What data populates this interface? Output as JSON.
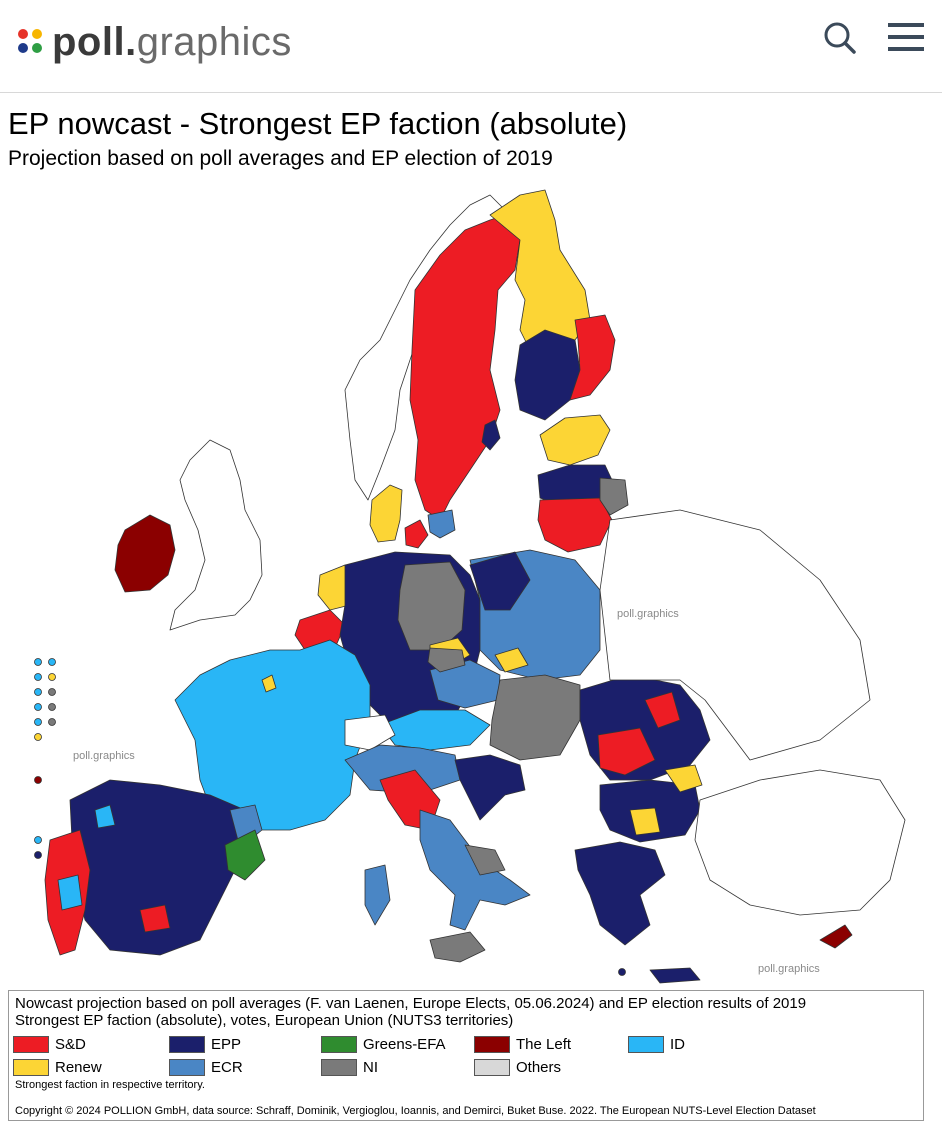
{
  "header": {
    "logo_text_bold": "poll.",
    "logo_text_light": "graphics",
    "logo_dot_colors": [
      "#e63329",
      "#f7b500",
      "#1e3a8a",
      "#2e9e44"
    ]
  },
  "page": {
    "title": "EP nowcast - Strongest EP faction (absolute)",
    "subtitle": "Projection based on poll averages and EP election of 2019"
  },
  "map": {
    "watermarks": [
      "poll.graphics",
      "poll.graphics",
      "poll.graphics"
    ],
    "background_outline_color": "#444444",
    "country_fills": {
      "ireland": "The Left",
      "sweden": "S&D",
      "finland": "Renew",
      "denmark": "Renew",
      "france": "ID",
      "spain": "EPP",
      "portugal": "S&D",
      "germany": "EPP",
      "poland": "ECR",
      "italy": "ECR",
      "romania": "EPP",
      "bulgaria": "EPP",
      "greece": "EPP",
      "hungary": "NI",
      "cyprus": "The Left"
    }
  },
  "legend": {
    "title": "Nowcast projection based on poll averages (F. van Laenen, Europe Elects, 05.06.2024) and EP election results of 2019",
    "subtitle": "Strongest EP faction (absolute), votes, European Union (NUTS3 territories)",
    "items": [
      {
        "label": "S&D",
        "color": "#ed1c24"
      },
      {
        "label": "EPP",
        "color": "#1b1f6b"
      },
      {
        "label": "Greens-EFA",
        "color": "#2f8c2f"
      },
      {
        "label": "The Left",
        "color": "#8b0000"
      },
      {
        "label": "ID",
        "color": "#29b6f6"
      },
      {
        "label": "Renew",
        "color": "#fcd535"
      },
      {
        "label": "ECR",
        "color": "#4a86c5"
      },
      {
        "label": "NI",
        "color": "#7a7a7a"
      },
      {
        "label": "Others",
        "color": "#d8d8d8"
      }
    ],
    "note": "Strongest faction in respective territory.",
    "copyright": "Copyright © 2024 POLLION GmbH, data source: Schraff, Dominik, Vergioglou, Ioannis, and Demirci, Buket Buse. 2022. The European NUTS-Level Election Dataset"
  }
}
